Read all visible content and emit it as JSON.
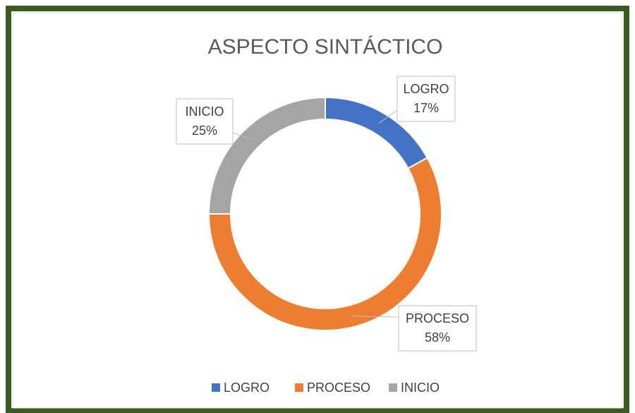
{
  "chart_data": {
    "type": "donut",
    "title": "ASPECTO SINTÁCTICO",
    "categories": [
      "LOGRO",
      "PROCESO",
      "INICIO"
    ],
    "values": [
      17,
      58,
      25
    ],
    "value_labels": [
      "17%",
      "58%",
      "25%"
    ],
    "colors": [
      "#4472c4",
      "#ed7d31",
      "#a5a5a5"
    ],
    "legend": "bottom"
  }
}
